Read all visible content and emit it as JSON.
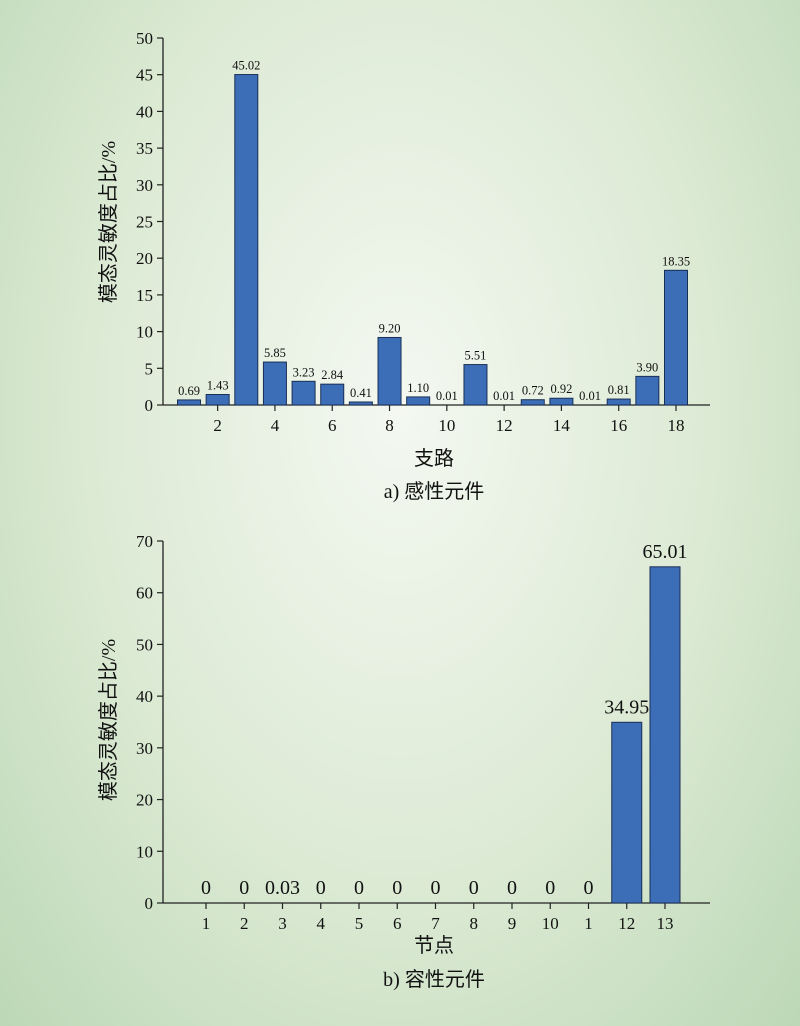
{
  "colors": {
    "bar_fill": "#3c6eb8",
    "bar_stroke": "#1b2f55",
    "axis": "#222222"
  },
  "chart_data": [
    {
      "type": "bar",
      "caption": "a) 感性元件",
      "xlabel": "支路",
      "ylabel": "模态灵敏度占比/%",
      "ylim": [
        0,
        50
      ],
      "yticks": [
        0,
        5,
        10,
        15,
        20,
        25,
        30,
        35,
        40,
        45,
        50
      ],
      "xticks": [
        2,
        4,
        6,
        8,
        10,
        12,
        14,
        16,
        18
      ],
      "categories": [
        1,
        2,
        3,
        4,
        5,
        6,
        7,
        8,
        9,
        10,
        11,
        12,
        13,
        14,
        15,
        16,
        17,
        18
      ],
      "values": [
        0.69,
        1.43,
        45.02,
        5.85,
        3.23,
        2.84,
        0.41,
        9.2,
        1.1,
        0.01,
        5.51,
        0.01,
        0.72,
        0.92,
        0.01,
        0.81,
        3.9,
        18.35
      ],
      "data_labels": [
        "0.69",
        "1.43",
        "45.02",
        "5.85",
        "3.23",
        "2.84",
        "0.41",
        "9.20",
        "1.10",
        "0.01",
        "5.51",
        "0.01",
        "0.72",
        "0.92",
        "0.01",
        "0.81",
        "3.90",
        "18.35"
      ],
      "grid": false
    },
    {
      "type": "bar",
      "caption": "b) 容性元件",
      "xlabel": "节点",
      "ylabel": "模态灵敏度占比/%",
      "ylim": [
        0,
        70
      ],
      "yticks": [
        0,
        10,
        20,
        30,
        40,
        50,
        60,
        70
      ],
      "categories": [
        "1",
        "2",
        "3",
        "4",
        "5",
        "6",
        "7",
        "8",
        "9",
        "10",
        "1",
        "12",
        "13"
      ],
      "values": [
        0,
        0,
        0.03,
        0,
        0,
        0,
        0,
        0,
        0,
        0,
        0,
        34.95,
        65.01
      ],
      "data_labels": [
        "0",
        "0",
        "0.03",
        "0",
        "0",
        "0",
        "0",
        "0",
        "0",
        "0",
        "0",
        "34.95",
        "65.01"
      ],
      "grid": false
    }
  ]
}
